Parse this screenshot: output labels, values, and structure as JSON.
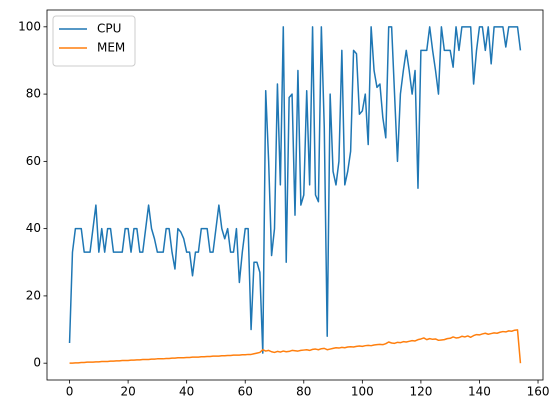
{
  "chart_data": {
    "type": "line",
    "x": [
      0,
      1,
      2,
      3,
      4,
      5,
      6,
      7,
      8,
      9,
      10,
      11,
      12,
      13,
      14,
      15,
      16,
      17,
      18,
      19,
      20,
      21,
      22,
      23,
      24,
      25,
      26,
      27,
      28,
      29,
      30,
      31,
      32,
      33,
      34,
      35,
      36,
      37,
      38,
      39,
      40,
      41,
      42,
      43,
      44,
      45,
      46,
      47,
      48,
      49,
      50,
      51,
      52,
      53,
      54,
      55,
      56,
      57,
      58,
      59,
      60,
      61,
      62,
      63,
      64,
      65,
      66,
      67,
      68,
      69,
      70,
      71,
      72,
      73,
      74,
      75,
      76,
      77,
      78,
      79,
      80,
      81,
      82,
      83,
      84,
      85,
      86,
      87,
      88,
      89,
      90,
      91,
      92,
      93,
      94,
      95,
      96,
      97,
      98,
      99,
      100,
      101,
      102,
      103,
      104,
      105,
      106,
      107,
      108,
      109,
      110,
      111,
      112,
      113,
      114,
      115,
      116,
      117,
      118,
      119,
      120,
      121,
      122,
      123,
      124,
      125,
      126,
      127,
      128,
      129,
      130,
      131,
      132,
      133,
      134,
      135,
      136,
      137,
      138,
      139,
      140,
      141,
      142,
      143,
      144,
      145,
      146,
      147,
      148,
      149,
      150,
      151,
      152,
      153,
      154
    ],
    "series": [
      {
        "name": "CPU",
        "color": "#1f77b4",
        "values": [
          6,
          33,
          40,
          40,
          40,
          33,
          33,
          33,
          40,
          47,
          33,
          40,
          33,
          40,
          40,
          33,
          33,
          33,
          33,
          40,
          40,
          33,
          40,
          40,
          33,
          33,
          40,
          47,
          40,
          37,
          33,
          33,
          33,
          40,
          40,
          33,
          28,
          40,
          39,
          37,
          33,
          33,
          26,
          33,
          33,
          40,
          40,
          40,
          33,
          33,
          40,
          47,
          40,
          37,
          40,
          33,
          33,
          40,
          24,
          33,
          40,
          40,
          10,
          30,
          30,
          27,
          3,
          81,
          60,
          32,
          40,
          83,
          53,
          100,
          30,
          79,
          80,
          44,
          87,
          47,
          50,
          81,
          53,
          100,
          50,
          48,
          100,
          70,
          8,
          80,
          57,
          53,
          60,
          93,
          53,
          57,
          63,
          93,
          92,
          74,
          75,
          80,
          65,
          100,
          87,
          82,
          83,
          73,
          67,
          100,
          100,
          80,
          60,
          80,
          87,
          93,
          87,
          80,
          87,
          52,
          93,
          93,
          93,
          100,
          93,
          87,
          80,
          100,
          93,
          93,
          93,
          88,
          100,
          93,
          100,
          100,
          100,
          100,
          83,
          93,
          100,
          100,
          93,
          100,
          89,
          100,
          100,
          100,
          100,
          94,
          100,
          100,
          100,
          100,
          93
        ]
      },
      {
        "name": "MEM",
        "color": "#ff7f0e",
        "values": [
          0,
          0,
          0.1,
          0.1,
          0.2,
          0.2,
          0.3,
          0.3,
          0.3,
          0.4,
          0.4,
          0.5,
          0.5,
          0.5,
          0.6,
          0.6,
          0.7,
          0.7,
          0.8,
          0.8,
          0.8,
          0.9,
          0.9,
          1,
          1,
          1.1,
          1.1,
          1.1,
          1.2,
          1.2,
          1.3,
          1.3,
          1.3,
          1.4,
          1.4,
          1.5,
          1.5,
          1.6,
          1.6,
          1.6,
          1.7,
          1.7,
          1.8,
          1.8,
          1.8,
          1.9,
          1.9,
          2,
          2,
          2.1,
          2.1,
          2.1,
          2.2,
          2.2,
          2.3,
          2.3,
          2.4,
          2.4,
          2.4,
          2.5,
          2.5,
          2.6,
          2.6,
          2.8,
          3,
          3.2,
          4,
          3.6,
          3.8,
          3.4,
          3.2,
          3.5,
          3.3,
          3.6,
          3.4,
          3.5,
          3.8,
          3.7,
          3.6,
          3.8,
          3.9,
          4,
          3.8,
          4.1,
          4.2,
          4,
          4.3,
          4.4,
          4,
          4.2,
          4.4,
          4.6,
          4.5,
          4.7,
          4.6,
          4.8,
          4.9,
          4.8,
          5,
          5.1,
          5,
          5.2,
          5.3,
          5.2,
          5.4,
          5.5,
          5.6,
          5.5,
          5.8,
          6.3,
          6,
          5.9,
          6.2,
          6.1,
          6.4,
          6.3,
          6.5,
          6.7,
          6.6,
          7,
          7.2,
          7.5,
          7,
          7.3,
          7.1,
          7.2,
          6.8,
          6.9,
          7,
          7.3,
          7.4,
          7.8,
          7.5,
          7.6,
          8,
          7.8,
          8.1,
          7.7,
          8.2,
          8.5,
          8.4,
          8.7,
          8.9,
          8.6,
          8.8,
          9,
          8.9,
          9.2,
          9.4,
          9.3,
          9.6,
          9.5,
          9.8,
          9.9,
          0
        ]
      }
    ],
    "xlim": [
      -7.7,
      161.7
    ],
    "xticks": [
      0,
      20,
      40,
      60,
      80,
      100,
      120,
      140,
      160
    ],
    "ylim": [
      -5,
      105
    ],
    "yticks": [
      0,
      20,
      40,
      60,
      80,
      100
    ],
    "legend": "upper left"
  }
}
